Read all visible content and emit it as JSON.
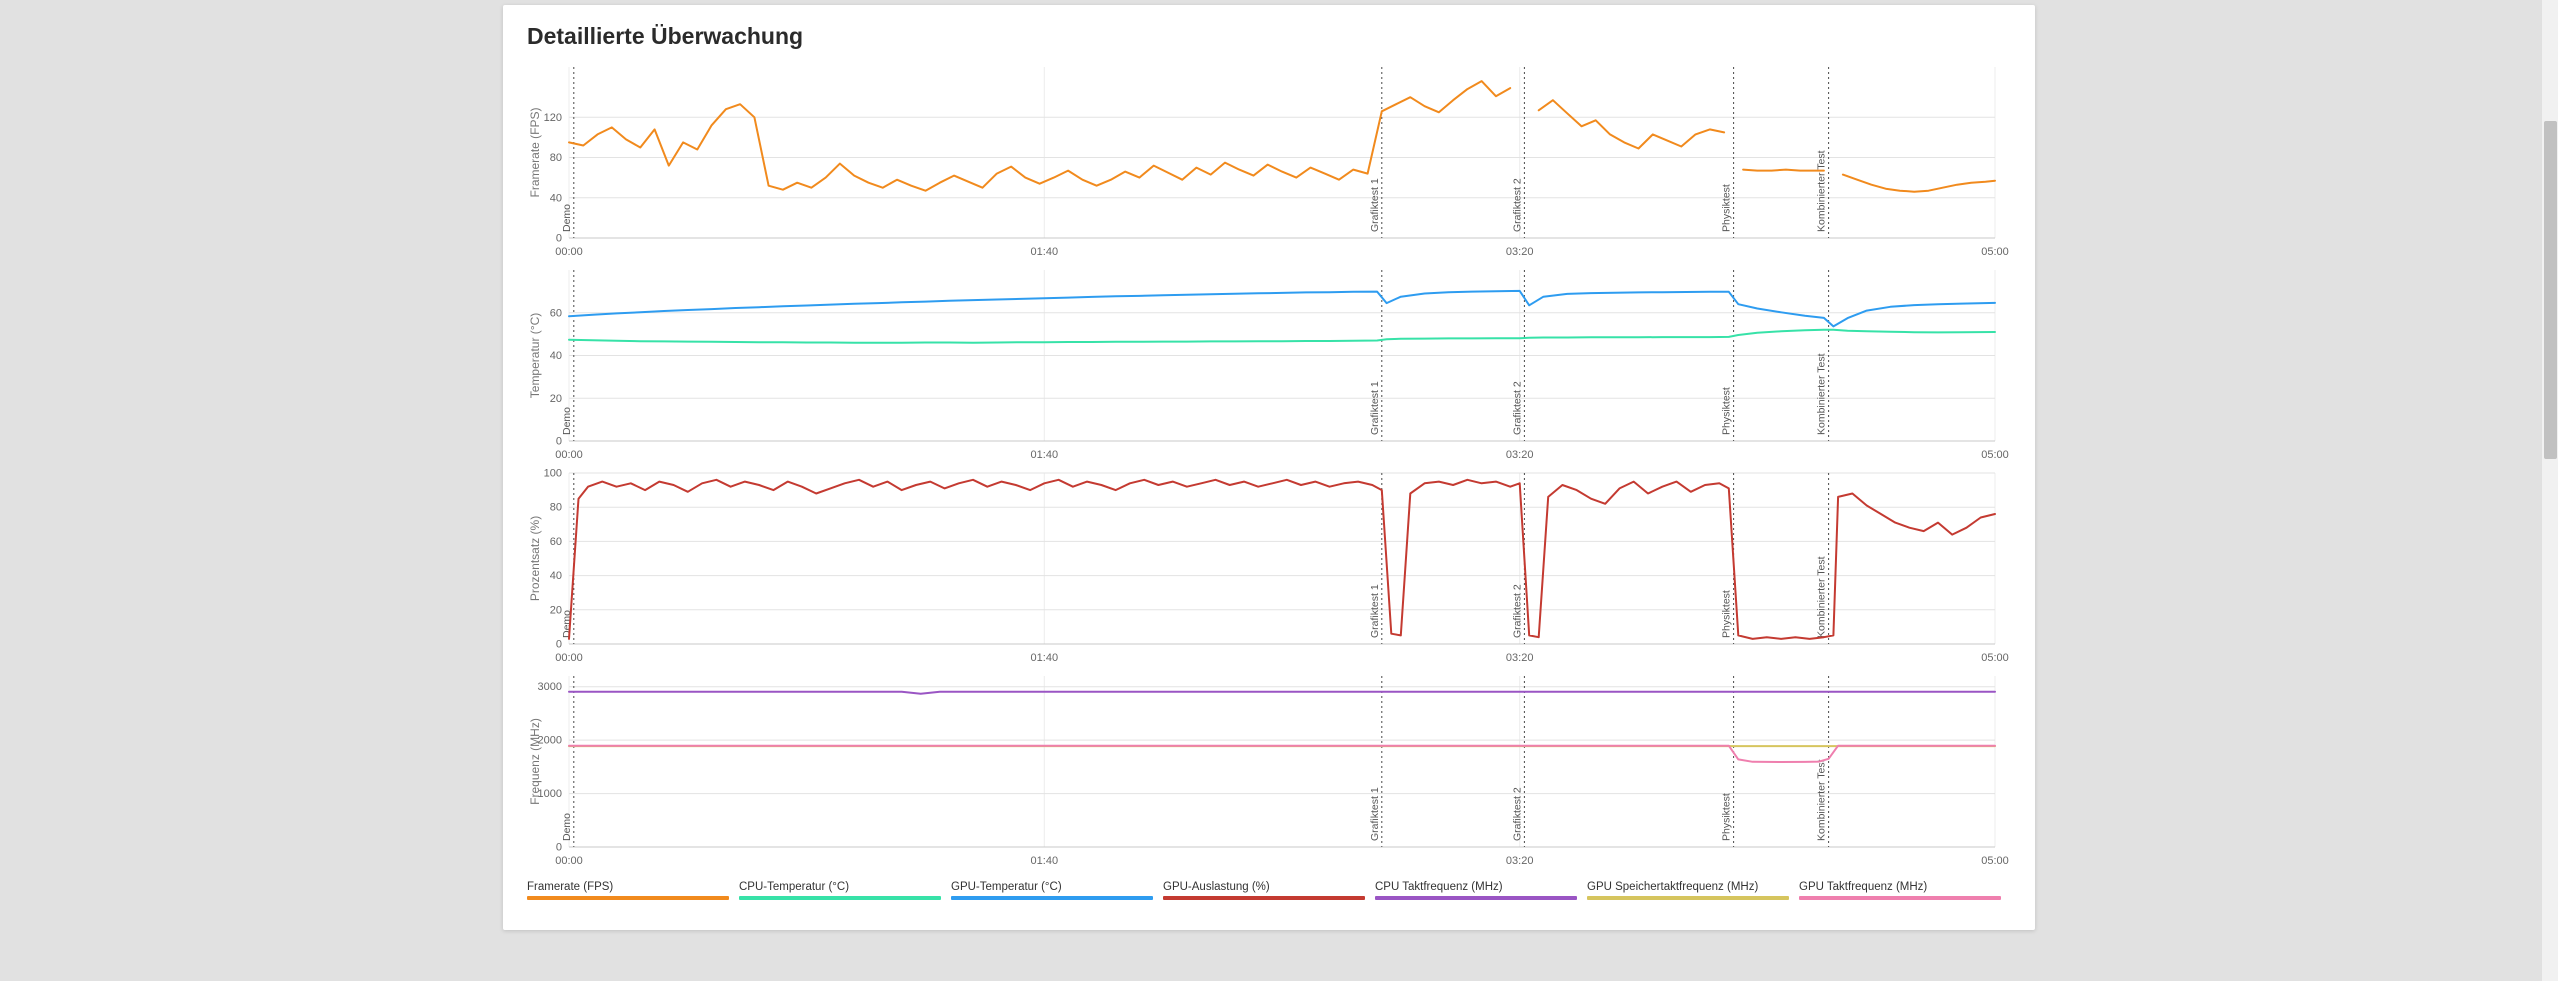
{
  "card": {
    "title": "Detaillierte Überwachung"
  },
  "colors": {
    "framerate": "#f18a1d",
    "cpu_temp": "#37e2a8",
    "gpu_temp": "#2e9cf0",
    "gpu_load": "#c43a31",
    "cpu_clock": "#9a55c4",
    "gpu_mem_clock": "#d6c55e",
    "gpu_clock": "#ef7fae",
    "phase_line": "#4a4a4a",
    "grid": "#e3e3e3"
  },
  "legend": {
    "items": [
      {
        "label": "Framerate (FPS)",
        "color": "#f18a1d"
      },
      {
        "label": "CPU-Temperatur (°C)",
        "color": "#37e2a8"
      },
      {
        "label": "GPU-Temperatur (°C)",
        "color": "#2e9cf0"
      },
      {
        "label": "GPU-Auslastung (%)",
        "color": "#c43a31"
      },
      {
        "label": "CPU Taktfrequenz (MHz)",
        "color": "#9a55c4"
      },
      {
        "label": "GPU Speichertaktfrequenz (MHz)",
        "color": "#d6c55e"
      },
      {
        "label": "GPU Taktfrequenz (MHz)",
        "color": "#ef7fae"
      }
    ]
  },
  "chart_data": {
    "type": "line",
    "x_range": [
      0,
      300
    ],
    "x_ticks": [
      {
        "t": 0,
        "label": "00:00"
      },
      {
        "t": 100,
        "label": "01:40"
      },
      {
        "t": 200,
        "label": "03:20"
      },
      {
        "t": 300,
        "label": "05:00"
      }
    ],
    "phases": [
      {
        "t": 1,
        "label": "Demo"
      },
      {
        "t": 171,
        "label": "Grafiktest 1"
      },
      {
        "t": 201,
        "label": "Grafiktest 2"
      },
      {
        "t": 245,
        "label": "Physiktest"
      },
      {
        "t": 265,
        "label": "Kombinierter Test"
      }
    ],
    "charts": [
      {
        "id": "framerate",
        "ylabel": "Framerate (FPS)",
        "y_range": [
          0,
          170
        ],
        "y_ticks": [
          0,
          40,
          80,
          120
        ],
        "series": [
          {
            "name": "Framerate (FPS)",
            "color": "#f18a1d",
            "x": [
              0,
              3,
              6,
              9,
              12,
              15,
              18,
              21,
              24,
              27,
              30,
              33,
              36,
              39,
              42,
              45,
              48,
              51,
              54,
              57,
              60,
              63,
              66,
              69,
              72,
              75,
              78,
              81,
              84,
              87,
              90,
              93,
              96,
              99,
              102,
              105,
              108,
              111,
              114,
              117,
              120,
              123,
              126,
              129,
              132,
              135,
              138,
              141,
              144,
              147,
              150,
              153,
              156,
              159,
              162,
              165,
              168,
              171,
              174,
              177,
              180,
              183,
              186,
              189,
              192,
              195,
              198,
              200,
              204,
              207,
              210,
              213,
              216,
              219,
              222,
              225,
              228,
              231,
              234,
              237,
              240,
              243,
              245,
              247,
              250,
              253,
              256,
              259,
              262,
              264,
              266,
              268,
              271,
              274,
              277,
              280,
              283,
              286,
              289,
              292,
              295,
              298,
              300
            ],
            "values": [
              95,
              92,
              103,
              110,
              98,
              90,
              108,
              72,
              95,
              88,
              112,
              128,
              133,
              120,
              52,
              48,
              55,
              50,
              60,
              74,
              62,
              55,
              50,
              58,
              52,
              47,
              55,
              62,
              56,
              50,
              64,
              71,
              60,
              54,
              60,
              67,
              58,
              52,
              58,
              66,
              60,
              72,
              65,
              58,
              70,
              63,
              75,
              68,
              62,
              73,
              66,
              60,
              70,
              64,
              58,
              68,
              64,
              126,
              133,
              140,
              131,
              125,
              137,
              148,
              156,
              141,
              149,
              null,
              127,
              137,
              124,
              111,
              117,
              103,
              95,
              89,
              103,
              97,
              91,
              103,
              108,
              105,
              null,
              68,
              67,
              67,
              68,
              67,
              67,
              67,
              null,
              63,
              58,
              53,
              49,
              47,
              46,
              47,
              50,
              53,
              55,
              56,
              57
            ]
          }
        ]
      },
      {
        "id": "temperature",
        "ylabel": "Temperatur (°C)",
        "y_range": [
          0,
          80
        ],
        "y_ticks": [
          0,
          20,
          40,
          60
        ],
        "x": [
          0,
          5,
          10,
          15,
          20,
          25,
          30,
          35,
          40,
          45,
          50,
          55,
          60,
          65,
          70,
          75,
          80,
          85,
          90,
          95,
          100,
          105,
          110,
          115,
          120,
          125,
          130,
          135,
          140,
          145,
          150,
          155,
          160,
          165,
          170,
          172,
          175,
          180,
          185,
          190,
          195,
          200,
          202,
          205,
          210,
          215,
          220,
          225,
          230,
          235,
          240,
          244,
          246,
          250,
          255,
          260,
          264,
          266,
          269,
          273,
          278,
          283,
          288,
          293,
          300
        ],
        "series": [
          {
            "name": "CPU-Temperatur (°C)",
            "color": "#37e2a8",
            "values": [
              47.4,
              47.1,
              46.9,
              46.7,
              46.6,
              46.5,
              46.4,
              46.3,
              46.2,
              46.2,
              46.1,
              46.1,
              46.0,
              46.0,
              46.0,
              46.1,
              46.1,
              46.0,
              46.1,
              46.2,
              46.2,
              46.3,
              46.3,
              46.4,
              46.4,
              46.5,
              46.5,
              46.6,
              46.6,
              46.7,
              46.7,
              46.8,
              46.8,
              46.9,
              47.0,
              47.6,
              47.8,
              47.9,
              48.0,
              48.0,
              48.1,
              48.1,
              48.3,
              48.4,
              48.4,
              48.5,
              48.5,
              48.5,
              48.6,
              48.6,
              48.6,
              48.7,
              49.6,
              50.6,
              51.3,
              51.8,
              52.0,
              52.0,
              51.6,
              51.3,
              51.1,
              50.9,
              50.8,
              50.9,
              51.0
            ]
          },
          {
            "name": "GPU-Temperatur (°C)",
            "color": "#2e9cf0",
            "values": [
              58.4,
              59.1,
              59.7,
              60.2,
              60.8,
              61.3,
              61.7,
              62.2,
              62.6,
              63.0,
              63.4,
              63.8,
              64.2,
              64.5,
              64.9,
              65.2,
              65.6,
              65.9,
              66.2,
              66.5,
              66.8,
              67.1,
              67.4,
              67.7,
              67.9,
              68.2,
              68.4,
              68.7,
              68.9,
              69.1,
              69.3,
              69.5,
              69.6,
              69.8,
              69.9,
              64.5,
              67.5,
              69.0,
              69.6,
              69.9,
              70.1,
              70.2,
              63.5,
              67.5,
              68.8,
              69.2,
              69.4,
              69.5,
              69.6,
              69.7,
              69.8,
              69.8,
              64.0,
              62.0,
              60.2,
              58.6,
              57.6,
              53.6,
              57.5,
              61.0,
              62.8,
              63.6,
              64.0,
              64.3,
              64.6
            ]
          }
        ]
      },
      {
        "id": "percent",
        "ylabel": "Prozentsatz (%)",
        "y_range": [
          0,
          100
        ],
        "y_ticks": [
          0,
          20,
          40,
          60,
          80,
          100
        ],
        "series": [
          {
            "name": "GPU-Auslastung (%)",
            "color": "#c43a31",
            "x": [
              0,
              2,
              4,
              7,
              10,
              13,
              16,
              19,
              22,
              25,
              28,
              31,
              34,
              37,
              40,
              43,
              46,
              49,
              52,
              55,
              58,
              61,
              64,
              67,
              70,
              73,
              76,
              79,
              82,
              85,
              88,
              91,
              94,
              97,
              100,
              103,
              106,
              109,
              112,
              115,
              118,
              121,
              124,
              127,
              130,
              133,
              136,
              139,
              142,
              145,
              148,
              151,
              154,
              157,
              160,
              163,
              166,
              169,
              171,
              173,
              175,
              177,
              180,
              183,
              186,
              189,
              192,
              195,
              198,
              200,
              202,
              204,
              206,
              209,
              212,
              215,
              218,
              221,
              224,
              227,
              230,
              233,
              236,
              239,
              242,
              244,
              246,
              249,
              252,
              255,
              258,
              261,
              264,
              266,
              267,
              270,
              273,
              276,
              279,
              282,
              285,
              288,
              291,
              294,
              297,
              300
            ],
            "values": [
              3,
              85,
              92,
              95,
              92,
              94,
              90,
              95,
              93,
              89,
              94,
              96,
              92,
              95,
              93,
              90,
              95,
              92,
              88,
              91,
              94,
              96,
              92,
              95,
              90,
              93,
              95,
              91,
              94,
              96,
              92,
              95,
              93,
              90,
              94,
              96,
              92,
              95,
              93,
              90,
              94,
              96,
              93,
              95,
              92,
              94,
              96,
              93,
              95,
              92,
              94,
              96,
              93,
              95,
              92,
              94,
              95,
              93,
              90,
              6,
              5,
              88,
              94,
              95,
              93,
              96,
              94,
              95,
              92,
              94,
              5,
              4,
              86,
              93,
              90,
              85,
              82,
              91,
              95,
              88,
              92,
              95,
              89,
              93,
              94,
              91,
              5,
              3,
              4,
              3,
              4,
              3,
              4,
              5,
              86,
              88,
              81,
              76,
              71,
              68,
              66,
              71,
              64,
              68,
              74,
              76
            ]
          }
        ]
      },
      {
        "id": "frequency",
        "ylabel": "Frequenz (MHz)",
        "y_range": [
          0,
          3200
        ],
        "y_ticks": [
          0,
          1000,
          2000,
          3000
        ],
        "series": [
          {
            "name": "GPU Speichertaktfrequenz (MHz)",
            "color": "#d6c55e",
            "x": [
              0,
              300
            ],
            "values": [
              1888,
              1888
            ]
          },
          {
            "name": "GPU Taktfrequenz (MHz)",
            "color": "#ef7fae",
            "x": [
              0,
              244,
              246,
              249,
              255,
              260,
              263,
              265,
              267,
              300
            ],
            "values": [
              1896,
              1896,
              1640,
              1594,
              1590,
              1592,
              1598,
              1650,
              1896,
              1896
            ]
          },
          {
            "name": "CPU Taktfrequenz (MHz)",
            "color": "#9a55c4",
            "x": [
              0,
              70,
              74,
              78,
              300
            ],
            "values": [
              2904,
              2904,
              2866,
              2904,
              2904
            ]
          }
        ]
      }
    ]
  },
  "scrollbar": {
    "visible": true
  }
}
